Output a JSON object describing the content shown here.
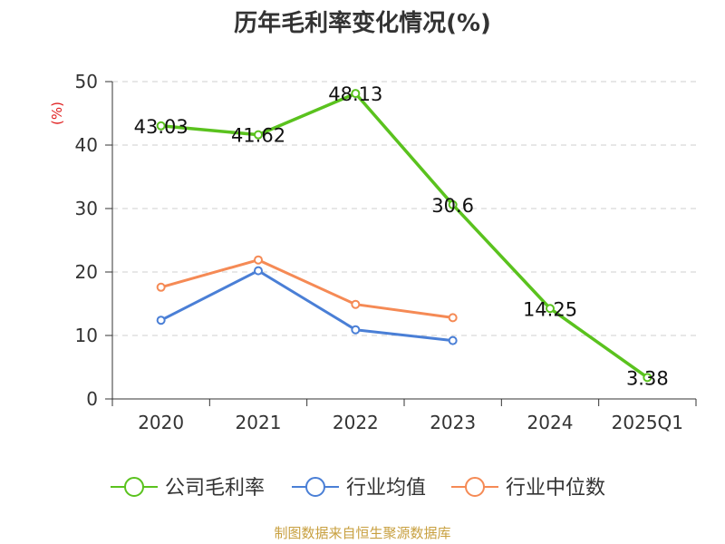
{
  "chart_data": {
    "type": "line",
    "title": "历年毛利率变化情况(%)",
    "ylabel": "(%)",
    "xlabel": "",
    "categories": [
      "2020",
      "2021",
      "2022",
      "2023",
      "2024",
      "2025Q1"
    ],
    "ylim": [
      0,
      50
    ],
    "yticks": [
      0,
      10,
      20,
      30,
      40,
      50
    ],
    "grid": "horizontal dashed",
    "legend_position": "bottom",
    "series": [
      {
        "name": "公司毛利率",
        "color": "#5ac21e",
        "values": [
          43.03,
          41.62,
          48.13,
          30.6,
          14.25,
          3.38
        ],
        "labels": [
          "43.03",
          "41.62",
          "48.13",
          "30.6",
          "14.25",
          "3.38"
        ]
      },
      {
        "name": "行业均值",
        "color": "#4a7fd6",
        "values": [
          12.4,
          20.2,
          10.9,
          9.2,
          null,
          null
        ]
      },
      {
        "name": "行业中位数",
        "color": "#f58a55",
        "values": [
          17.6,
          21.9,
          14.9,
          12.8,
          null,
          null
        ]
      }
    ],
    "source": "制图数据来自恒生聚源数据库"
  }
}
